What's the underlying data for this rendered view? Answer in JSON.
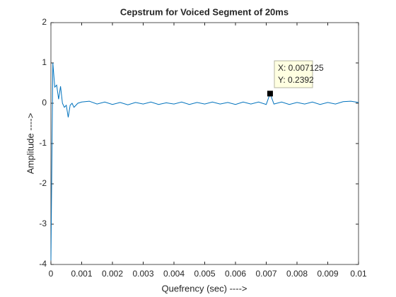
{
  "chart_data": {
    "type": "line",
    "title": "Cepstrum for Voiced Segment of 20ms",
    "xlabel": "Quefrency (sec) ---->",
    "ylabel": "Amplitude ---->",
    "xlim": [
      0,
      0.01
    ],
    "ylim": [
      -4,
      2
    ],
    "xticks": [
      0,
      0.001,
      0.002,
      0.003,
      0.004,
      0.005,
      0.006,
      0.007,
      0.008,
      0.009,
      0.01
    ],
    "yticks": [
      -4,
      -3,
      -2,
      -1,
      0,
      1,
      2
    ],
    "series": [
      {
        "color": "#0072bd",
        "x": [
          0,
          6.25e-05,
          0.000125,
          0.0001875,
          0.00025,
          0.0003125,
          0.000375,
          0.0004375,
          0.0005,
          0.0005625,
          0.000625,
          0.0006875,
          0.00075,
          0.000875,
          0.001,
          0.00125,
          0.0015,
          0.00175,
          0.002,
          0.00225,
          0.0025,
          0.00275,
          0.003,
          0.00325,
          0.0035,
          0.00375,
          0.004,
          0.00425,
          0.0045,
          0.00475,
          0.005,
          0.00525,
          0.0055,
          0.00575,
          0.006,
          0.00625,
          0.0065,
          0.00675,
          0.007,
          0.007125,
          0.00725,
          0.0075,
          0.00775,
          0.008,
          0.00825,
          0.0085,
          0.00875,
          0.009,
          0.00925,
          0.0095,
          0.00975,
          0.01
        ],
        "values": [
          -3.9,
          1.0,
          0.4,
          0.45,
          0.1,
          0.42,
          0.0,
          -0.1,
          -0.05,
          -0.35,
          -0.05,
          0.0,
          -0.1,
          0.0,
          0.03,
          0.05,
          -0.02,
          0.03,
          -0.03,
          0.02,
          -0.04,
          0.02,
          -0.02,
          0.03,
          -0.03,
          0.01,
          -0.02,
          0.03,
          -0.03,
          0.02,
          -0.02,
          0.03,
          -0.02,
          0.02,
          -0.03,
          0.03,
          -0.02,
          0.03,
          -0.03,
          0.2392,
          -0.02,
          0.03,
          -0.03,
          0.02,
          -0.02,
          0.03,
          -0.03,
          0.02,
          -0.02,
          0.04,
          0.05,
          0.02
        ]
      }
    ],
    "datatip": {
      "x": 0.007125,
      "y": 0.2392,
      "x_text": "X: 0.007125",
      "y_text": "Y: 0.2392"
    }
  }
}
